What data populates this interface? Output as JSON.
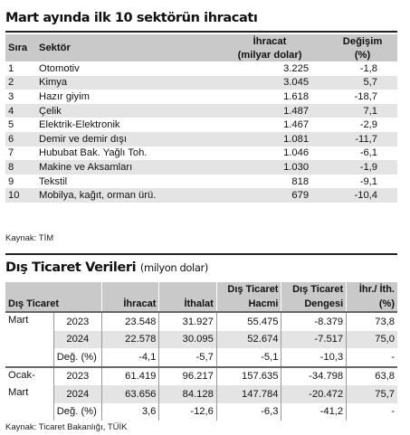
{
  "table1": {
    "title": "Mart ayında ilk 10 sektörün ihracatı",
    "headers": {
      "rank": "Sıra",
      "sector": "Sektör",
      "export_line1": "İhracat",
      "export_line2": "(milyar dolar)",
      "change_line1": "Değişim",
      "change_line2": "(%)"
    },
    "rows": [
      {
        "rank": "1",
        "sector": "Otomotiv",
        "export": "3.225",
        "change": "-1,8"
      },
      {
        "rank": "2",
        "sector": "Kimya",
        "export": "3.045",
        "change": "5,7"
      },
      {
        "rank": "3",
        "sector": "Hazır giyim",
        "export": "1.618",
        "change": "-18,7"
      },
      {
        "rank": "4",
        "sector": "Çelik",
        "export": "1.487",
        "change": "7,1"
      },
      {
        "rank": "5",
        "sector": "Elektrik-Elektronik",
        "export": "1.467",
        "change": "-2,9"
      },
      {
        "rank": "6",
        "sector": "Demir ve demir dışı",
        "export": "1.081",
        "change": "-11,7"
      },
      {
        "rank": "7",
        "sector": "Hububat Bak. Yağlı Toh.",
        "export": "1.046",
        "change": "-6,1"
      },
      {
        "rank": "8",
        "sector": "Makine ve Aksamları",
        "export": "1.030",
        "change": "-1,9"
      },
      {
        "rank": "9",
        "sector": "Tekstil",
        "export": "818",
        "change": "-9,1"
      },
      {
        "rank": "10",
        "sector": "Mobilya, kağıt, orman ürü.",
        "export": "679",
        "change": "-10,4"
      }
    ],
    "source": "Kaynak: TİM"
  },
  "table2": {
    "title": "Dış Ticaret Verileri",
    "subtitle": "(milyon dolar)",
    "headers": {
      "period": "Dış Ticaret",
      "export": "İhracat",
      "import": "İthalat",
      "volume_line1": "Dış Ticaret",
      "volume_line2": "Hacmi",
      "balance_line1": "Dış Ticaret",
      "balance_line2": "Dengesi",
      "ratio_line1": "İhr./ İth.",
      "ratio_line2": "(%)"
    },
    "groups": [
      {
        "label_line1": "Mart",
        "label_line2": "",
        "rows": [
          {
            "label": "2023",
            "export": "23.548",
            "import": "31.927",
            "volume": "55.475",
            "balance": "-8.379",
            "ratio": "73,8"
          },
          {
            "label": "2024",
            "export": "22.578",
            "import": "30.095",
            "volume": "52.674",
            "balance": "-7.517",
            "ratio": "75,0"
          },
          {
            "label": "Değ. (%)",
            "export": "-4,1",
            "import": "-5,7",
            "volume": "-5,1",
            "balance": "-10,3",
            "ratio": "-"
          }
        ]
      },
      {
        "label_line1": "Ocak-",
        "label_line2": "Mart",
        "rows": [
          {
            "label": "2023",
            "export": "61.419",
            "import": "96.217",
            "volume": "157.635",
            "balance": "-34.798",
            "ratio": "63,8"
          },
          {
            "label": "2024",
            "export": "63.656",
            "import": "84.128",
            "volume": "147.784",
            "balance": "-20.472",
            "ratio": "75,7"
          },
          {
            "label": "Değ. (%)",
            "export": "3,6",
            "import": "-12,6",
            "volume": "-6,3",
            "balance": "-41,2",
            "ratio": "-"
          }
        ]
      }
    ],
    "source": "Kaynak: Ticaret Bakanlığı, TÜİK"
  }
}
